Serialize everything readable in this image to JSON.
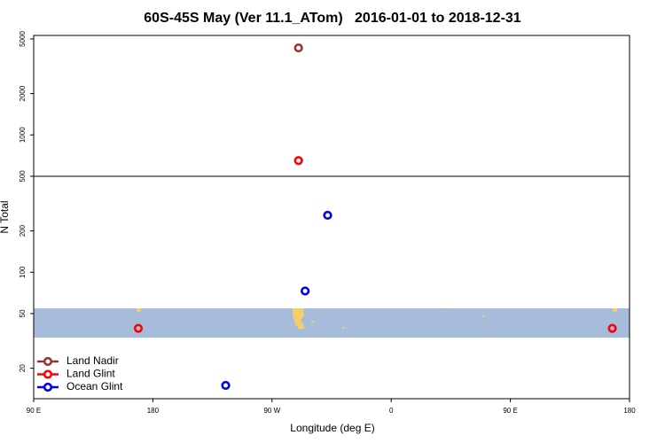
{
  "chart_data": {
    "type": "scatter",
    "title": "60S-45S May (Ver 11.1_ATom)   2016-01-01 to 2018-12-31",
    "x_label": "Longitude (deg E)",
    "y_label": "N Total",
    "log_y": true,
    "legend_position": "bottom-left",
    "xlim": [
      90,
      540
    ],
    "ylim": [
      12,
      5300
    ],
    "xticks": [
      {
        "value": 90,
        "label": "90 E"
      },
      {
        "value": 180,
        "label": "180"
      },
      {
        "value": 270,
        "label": "90 W"
      },
      {
        "value": 360,
        "label": "0"
      },
      {
        "value": 450,
        "label": "90 E"
      },
      {
        "value": 540,
        "label": "180"
      }
    ],
    "yticks": [
      20,
      50,
      100,
      200,
      500,
      1000,
      2000,
      5000
    ],
    "series": [
      {
        "name": "Land Nadir",
        "color": "#993333",
        "x": [
          290
        ],
        "values": [
          4300
        ]
      },
      {
        "name": "Land Glint",
        "color": "#ff0000",
        "x": [
          290,
          169,
          527
        ],
        "values": [
          650,
          39,
          39
        ]
      },
      {
        "name": "Ocean Glint",
        "color": "#0000ee",
        "x": [
          312,
          295,
          235
        ],
        "values": [
          260,
          73,
          15
        ]
      }
    ]
  }
}
